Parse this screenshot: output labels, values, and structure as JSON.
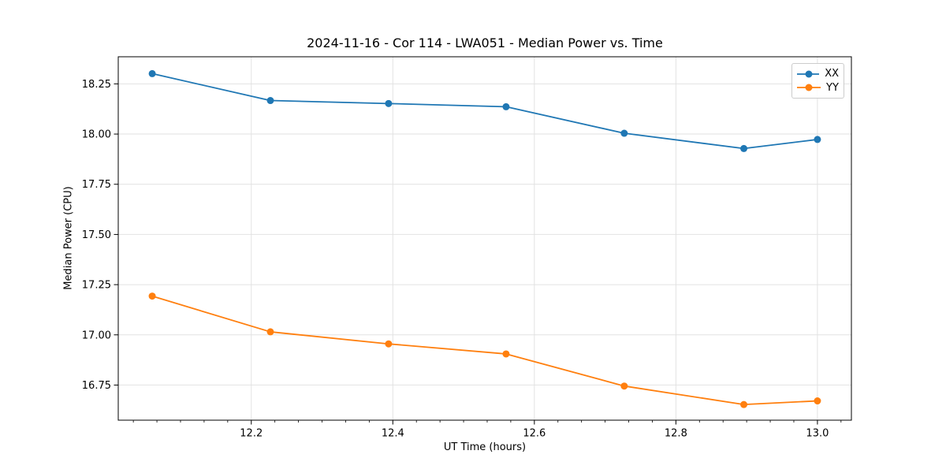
{
  "chart_data": {
    "type": "line",
    "title": "2024-11-16 - Cor 114 - LWA051 - Median Power vs. Time",
    "xlabel": "UT Time (hours)",
    "ylabel": "Median Power (CPU)",
    "xlim": [
      12.012,
      13.048
    ],
    "ylim": [
      16.575,
      18.385
    ],
    "x_ticks": [
      12.2,
      12.4,
      12.6,
      12.8,
      13.0
    ],
    "x_tick_labels": [
      "12.2",
      "12.4",
      "12.6",
      "12.8",
      "13.0"
    ],
    "y_ticks": [
      16.75,
      17.0,
      17.25,
      17.5,
      17.75,
      18.0,
      18.25
    ],
    "y_tick_labels": [
      "16.75",
      "17.00",
      "17.25",
      "17.50",
      "17.75",
      "18.00",
      "18.25"
    ],
    "x_minor_tick_step": 0.0333333,
    "grid": true,
    "legend_position": "upper-right",
    "x": [
      12.06,
      12.227,
      12.394,
      12.56,
      12.727,
      12.896,
      13.0
    ],
    "series": [
      {
        "name": "XX",
        "color": "#1f77b4",
        "values": [
          18.301,
          18.167,
          18.152,
          18.136,
          18.004,
          17.928,
          17.973
        ]
      },
      {
        "name": "YY",
        "color": "#ff7f0e",
        "values": [
          17.193,
          17.015,
          16.955,
          16.905,
          16.745,
          16.653,
          16.671
        ]
      }
    ],
    "colors": {
      "grid": "#e2e2e2",
      "spine": "#000000",
      "text": "#000000"
    }
  }
}
